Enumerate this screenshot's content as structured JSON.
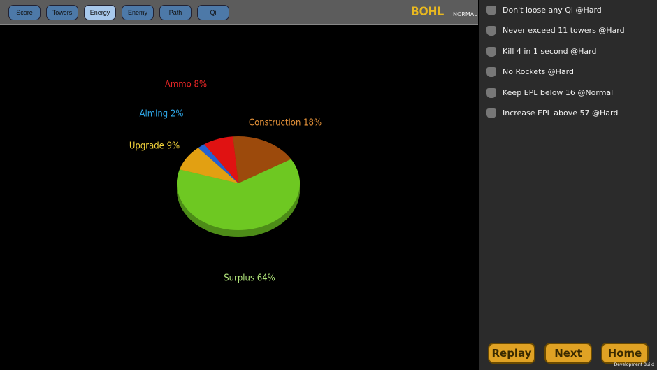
{
  "tabs": [
    "Score",
    "Towers",
    "Energy",
    "Enemy",
    "Path",
    "Qi"
  ],
  "player": "BOHL",
  "difficulty": "NORMAL",
  "chart_data": {
    "type": "pie",
    "values": [
      18,
      64,
      9,
      2,
      8
    ],
    "value_labels": [
      "Construction 18%",
      "Surplus 64%",
      "Upgrade 9%",
      "Aiming 2%",
      "Ammo 8%"
    ],
    "colors": [
      "#9c4a0c",
      "#6ec822",
      "#e2a012",
      "#2462d2",
      "#e01212"
    ],
    "label_colors": [
      "#e8943a",
      "#b0e47a",
      "#f2d23a",
      "#2ea6e6",
      "#e62626"
    ]
  },
  "achievements": [
    "Don't loose any Qi @Hard",
    "Never exceed 11 towers @Hard",
    "Kill 4 in 1 second @Hard",
    "No Rockets @Hard",
    "Keep EPL below 16 @Normal",
    "Increase EPL above 57 @Hard"
  ],
  "buttons": [
    "Replay",
    "Next",
    "Home"
  ],
  "footer": "Development Build"
}
